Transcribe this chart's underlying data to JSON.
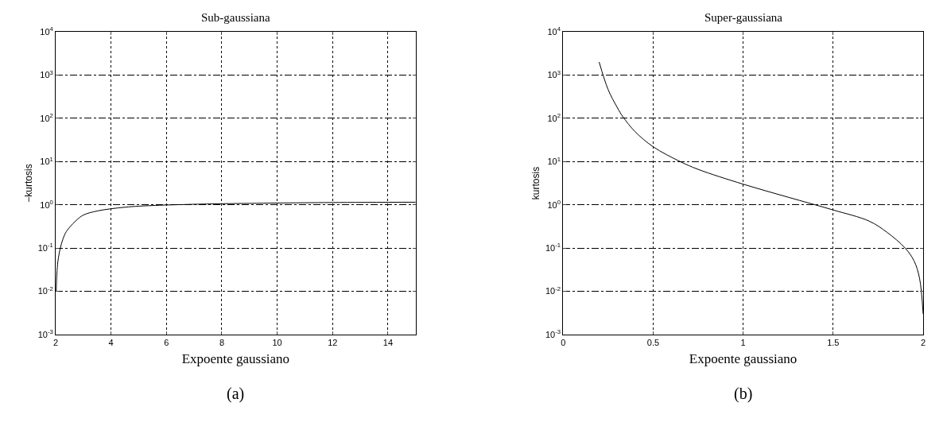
{
  "chart_data": [
    {
      "type": "line",
      "title": "Sub-gaussiana",
      "xlabel": "Expoente gaussiano",
      "ylabel": "−kurtosis",
      "annotations": [
        "(a)"
      ],
      "color": "#000000",
      "log": "y",
      "grid": true,
      "line_style": "solid",
      "marker": "none",
      "x": [
        2.02,
        2.05,
        2.1,
        2.2,
        2.35,
        2.5,
        2.75,
        3,
        3.5,
        4,
        4.5,
        5,
        6,
        7,
        8,
        9,
        10,
        12,
        15
      ],
      "values": [
        0.01,
        0.03,
        0.06,
        0.12,
        0.22,
        0.3,
        0.44,
        0.58,
        0.72,
        0.81,
        0.88,
        0.93,
        0.99,
        1.03,
        1.06,
        1.08,
        1.1,
        1.13,
        1.15
      ],
      "xlim": [
        2,
        15
      ],
      "xticks": [
        2,
        4,
        6,
        8,
        10,
        12,
        14
      ],
      "ylim": [
        0.001,
        10000
      ],
      "yticks": [
        {
          "value": 0.001,
          "label": "10$^{-3}$"
        },
        {
          "value": 0.01,
          "label": "10$^{-2}$"
        },
        {
          "value": 0.1,
          "label": "10$^{-1}$"
        },
        {
          "value": 1,
          "label": "10$^{0}$"
        },
        {
          "value": 10,
          "label": "10$^{1}$"
        },
        {
          "value": 100,
          "label": "10$^{2}$"
        },
        {
          "value": 1000,
          "label": "10$^{3}$"
        },
        {
          "value": 10000,
          "label": "10$^{4}$"
        }
      ]
    },
    {
      "type": "line",
      "title": "Super-gaussiana",
      "xlabel": "Expoente gaussiano",
      "ylabel": "kurtosis",
      "annotations": [
        "(b)"
      ],
      "color": "#000000",
      "log": "y",
      "grid": true,
      "line_style": "solid",
      "marker": "none",
      "x": [
        0.2,
        0.25,
        0.3,
        0.333,
        0.4,
        0.5,
        0.65,
        0.75,
        1,
        1.25,
        1.5,
        1.7,
        1.8,
        1.9,
        1.95,
        1.98,
        2
      ],
      "values": [
        2000,
        460,
        180,
        107,
        49,
        22,
        10,
        6.6,
        3,
        1.5,
        0.76,
        0.42,
        0.23,
        0.1,
        0.05,
        0.02,
        0.003
      ],
      "xlim": [
        0,
        2
      ],
      "xticks": [
        0,
        0.5,
        1,
        1.5,
        2
      ],
      "ylim": [
        0.001,
        10000
      ],
      "yticks": [
        {
          "value": 0.001,
          "label": "10$^{-3}$"
        },
        {
          "value": 0.01,
          "label": "10$^{-2}$"
        },
        {
          "value": 0.1,
          "label": "10$^{-1}$"
        },
        {
          "value": 1,
          "label": "10$^{0}$"
        },
        {
          "value": 10,
          "label": "10$^{1}$"
        },
        {
          "value": 100,
          "label": "10$^{2}$"
        },
        {
          "value": 1000,
          "label": "10$^{3}$"
        },
        {
          "value": 10000,
          "label": "10$^{4}$"
        }
      ]
    }
  ]
}
